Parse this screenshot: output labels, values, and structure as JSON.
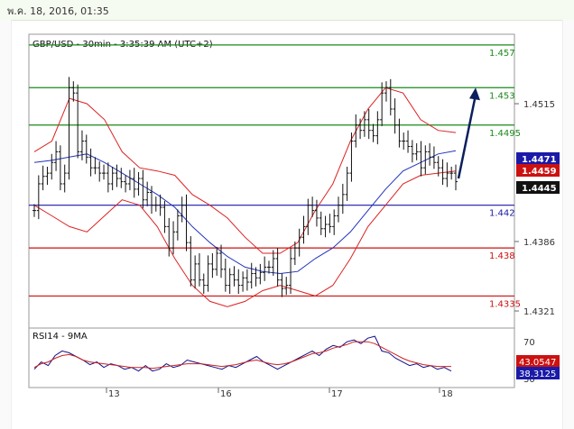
{
  "header": {
    "timestamp": "พ.ค. 18, 2016, 01:35"
  },
  "chart_data": [
    {
      "type": "candlestick",
      "title": "GBP/USD - 30min - 3:35:39 AM (UTC+2)",
      "x_ticks": [
        "13",
        "16",
        "17",
        "18"
      ],
      "y_ticks": [
        "1.4515",
        "1.4386",
        "1.4321"
      ],
      "ylim": [
        1.4305,
        1.458
      ],
      "levels": [
        {
          "label": "1.457",
          "value": 1.457,
          "color": "#1a8a1a"
        },
        {
          "label": "1.453",
          "value": 1.453,
          "color": "#1a8a1a"
        },
        {
          "label": "1.4495",
          "value": 1.4495,
          "color": "#1a8a1a"
        },
        {
          "label": "1.442",
          "value": 1.442,
          "color": "#1a1aa8"
        },
        {
          "label": "1.438",
          "value": 1.438,
          "color": "#cc1111"
        },
        {
          "label": "1.4335",
          "value": 1.4335,
          "color": "#cc1111"
        }
      ],
      "price_tags": [
        {
          "label": "1.4471",
          "value": 1.4471,
          "color": "#1a1aa8"
        },
        {
          "label": "1.4459",
          "value": 1.4459,
          "color": "#cc1111"
        },
        {
          "label": "1.4445",
          "value": 1.4445,
          "color": "#111111"
        }
      ],
      "close_path": [
        1.4415,
        1.444,
        1.4447,
        1.445,
        1.446,
        1.447,
        1.444,
        1.445,
        1.453,
        1.4525,
        1.447,
        1.448,
        1.4465,
        1.4455,
        1.4455,
        1.445,
        1.445,
        1.444,
        1.445,
        1.4445,
        1.4442,
        1.444,
        1.4445,
        1.4435,
        1.4445,
        1.4425,
        1.4432,
        1.442,
        1.442,
        1.4418,
        1.44,
        1.438,
        1.4395,
        1.441,
        1.442,
        1.4385,
        1.435,
        1.4365,
        1.435,
        1.4345,
        1.4365,
        1.436,
        1.4375,
        1.436,
        1.4345,
        1.4355,
        1.435,
        1.4345,
        1.4352,
        1.4348,
        1.4356,
        1.4352,
        1.4357,
        1.4362,
        1.4362,
        1.437,
        1.435,
        1.4342,
        1.4345,
        1.437,
        1.438,
        1.439,
        1.44,
        1.442,
        1.4415,
        1.4408,
        1.4398,
        1.4402,
        1.44,
        1.441,
        1.442,
        1.443,
        1.445,
        1.448,
        1.4495,
        1.449,
        1.45,
        1.449,
        1.4485,
        1.45,
        1.4525,
        1.453,
        1.451,
        1.4495,
        1.448,
        1.448,
        1.4475,
        1.4468,
        1.447,
        1.4455,
        1.447,
        1.4465,
        1.446,
        1.4455,
        1.4445,
        1.445,
        1.445,
        1.4442
      ],
      "ma": [
        1.446,
        1.4462,
        1.4465,
        1.4468,
        1.446,
        1.445,
        1.444,
        1.443,
        1.4418,
        1.44,
        1.4385,
        1.4372,
        1.4362,
        1.4358,
        1.4356,
        1.4358,
        1.437,
        1.438,
        1.4395,
        1.4415,
        1.4435,
        1.4452,
        1.446,
        1.4468,
        1.4471
      ],
      "bb_upper": [
        1.447,
        1.448,
        1.452,
        1.4515,
        1.45,
        1.447,
        1.4455,
        1.4452,
        1.4448,
        1.443,
        1.442,
        1.4408,
        1.439,
        1.4375,
        1.4375,
        1.4385,
        1.4415,
        1.444,
        1.448,
        1.451,
        1.453,
        1.4525,
        1.45,
        1.449,
        1.4488
      ],
      "bb_lower": [
        1.442,
        1.441,
        1.44,
        1.4395,
        1.441,
        1.4425,
        1.442,
        1.44,
        1.437,
        1.4345,
        1.433,
        1.4325,
        1.433,
        1.434,
        1.4345,
        1.434,
        1.4335,
        1.4345,
        1.437,
        1.44,
        1.442,
        1.444,
        1.4448,
        1.445,
        1.4452
      ],
      "arrow": {
        "from": [
          1.4445
        ],
        "to": [
          1.453
        ]
      }
    },
    {
      "type": "line",
      "title": "RSI14 - 9MA",
      "y_ticks": [
        "70",
        "30"
      ],
      "ylim": [
        20,
        85
      ],
      "series": [
        {
          "name": "RSI14",
          "color": "#111188",
          "values": [
            40,
            48,
            44,
            55,
            60,
            58,
            54,
            50,
            45,
            48,
            42,
            46,
            44,
            40,
            42,
            38,
            44,
            38,
            40,
            46,
            42,
            44,
            50,
            48,
            46,
            44,
            42,
            40,
            44,
            42,
            46,
            50,
            54,
            48,
            44,
            40,
            44,
            48,
            52,
            56,
            60,
            55,
            62,
            66,
            64,
            70,
            72,
            68,
            74,
            76,
            60,
            58,
            52,
            48,
            44,
            46,
            42,
            44,
            40,
            42,
            38
          ]
        },
        {
          "name": "9MA",
          "color": "#cc2222",
          "values": [
            42,
            46,
            48,
            52,
            55,
            56,
            54,
            50,
            48,
            47,
            46,
            45,
            44,
            43,
            42,
            42,
            42,
            41,
            42,
            43,
            44,
            45,
            46,
            46,
            46,
            45,
            44,
            43,
            44,
            45,
            47,
            49,
            50,
            48,
            46,
            45,
            46,
            48,
            51,
            54,
            57,
            58,
            60,
            63,
            65,
            67,
            70,
            70,
            70,
            68,
            64,
            60,
            56,
            52,
            49,
            47,
            45,
            44,
            43,
            43,
            43
          ]
        }
      ],
      "tags": [
        {
          "label": "43.0547",
          "value": 43.0547,
          "color": "#cc1111"
        },
        {
          "label": "38.3125",
          "value": 38.3125,
          "color": "#1a1aa8"
        }
      ]
    }
  ]
}
